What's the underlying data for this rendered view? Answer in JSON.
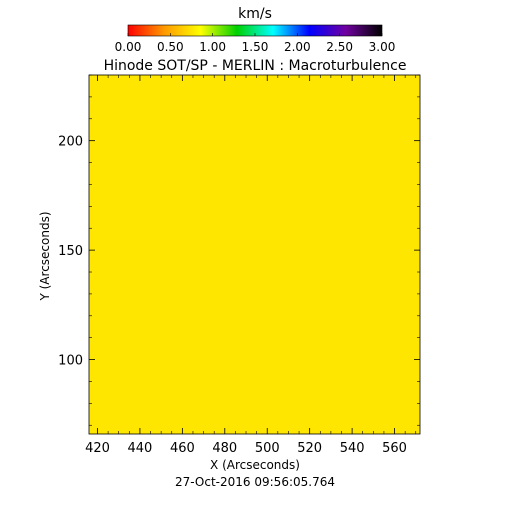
{
  "chart_data": {
    "type": "heatmap",
    "title": "Hinode SOT/SP - MERLIN : Macroturbulence",
    "xlabel": "X (Arcseconds)",
    "ylabel": "Y (Arcseconds)",
    "timestamp": "27-Oct-2016 09:56:05.764",
    "xlim": [
      416,
      572
    ],
    "ylim": [
      66,
      230
    ],
    "xticks": [
      420,
      440,
      460,
      480,
      500,
      520,
      540,
      560
    ],
    "yticks": [
      100,
      150,
      200
    ],
    "field_color": "#ffe600",
    "field_value_kms": 1.0,
    "colorbar": {
      "unit_label": "km/s",
      "range": [
        0.0,
        3.0
      ],
      "tick_labels": [
        "0.00",
        "0.50",
        "1.00",
        "1.50",
        "2.00",
        "2.50",
        "3.00"
      ],
      "colors": [
        "#ff0000",
        "#ff9900",
        "#ffff00",
        "#00d000",
        "#00ffff",
        "#0000ff",
        "#7000a0",
        "#000000"
      ]
    }
  }
}
